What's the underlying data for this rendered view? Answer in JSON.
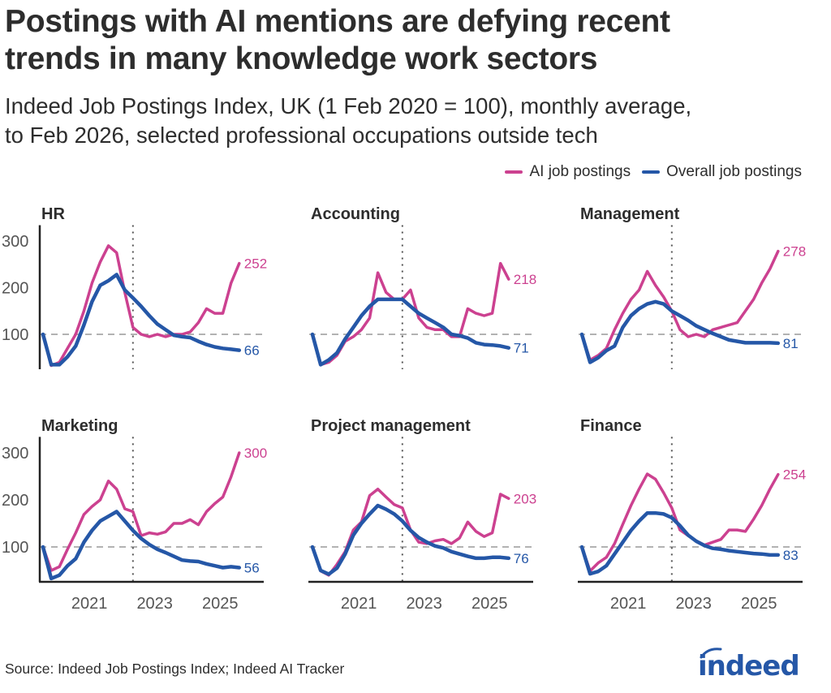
{
  "title_lines": [
    "Postings with AI mentions are defying recent",
    "trends in many knowledge work sectors"
  ],
  "subtitle_lines": [
    "Indeed Job Postings Index, UK (1 Feb 2020 = 100), monthly average,",
    "to Feb 2026, selected professional occupations outside tech"
  ],
  "legend": [
    {
      "label": "AI job postings",
      "color": "#CC4190"
    },
    {
      "label": "Overall job postings",
      "color": "#2557A7"
    }
  ],
  "source": "Source: Indeed Job Postings Index; Indeed AI Tracker",
  "logo_text": "indeed",
  "chart_data": {
    "type": "line",
    "layout": "small-multiples 2x3",
    "x": [
      "2020-02",
      "2020-05",
      "2020-08",
      "2020-11",
      "2021-02",
      "2021-05",
      "2021-08",
      "2021-11",
      "2022-02",
      "2022-05",
      "2022-08",
      "2022-11",
      "2023-02",
      "2023-05",
      "2023-08",
      "2023-11",
      "2024-02",
      "2024-05",
      "2024-08",
      "2024-11",
      "2025-02",
      "2025-05",
      "2025-08",
      "2025-11",
      "2026-02"
    ],
    "x_ticks": [
      "2021",
      "2023",
      "2025"
    ],
    "y_ticks": [
      100,
      200,
      300
    ],
    "ylim": [
      25,
      320
    ],
    "baseline": 100,
    "reference_line_date": "2022-11",
    "grid": false,
    "legend_position": "top-right",
    "panels": [
      {
        "title": "HR",
        "series": [
          {
            "name": "AI job postings",
            "end_label": "252",
            "values": [
              100,
              33,
              40,
              70,
              100,
              150,
              210,
              255,
              290,
              275,
              190,
              115,
              100,
              95,
              100,
              95,
              100,
              100,
              105,
              125,
              155,
              145,
              145,
              210,
              252
            ]
          },
          {
            "name": "Overall job postings",
            "end_label": "66",
            "values": [
              100,
              35,
              35,
              52,
              75,
              120,
              170,
              205,
              215,
              228,
              195,
              178,
              160,
              140,
              122,
              110,
              98,
              95,
              93,
              85,
              78,
              73,
              70,
              68,
              66
            ]
          }
        ]
      },
      {
        "title": "Accounting",
        "series": [
          {
            "name": "AI job postings",
            "end_label": "218",
            "values": [
              100,
              35,
              40,
              55,
              85,
              95,
              110,
              135,
              232,
              190,
              175,
              175,
              195,
              135,
              115,
              110,
              110,
              95,
              95,
              155,
              145,
              140,
              145,
              252,
              218
            ]
          },
          {
            "name": "Overall job postings",
            "end_label": "71",
            "values": [
              100,
              35,
              45,
              60,
              90,
              115,
              140,
              160,
              175,
              175,
              175,
              175,
              160,
              145,
              135,
              125,
              115,
              100,
              97,
              92,
              82,
              78,
              77,
              75,
              71
            ]
          }
        ]
      },
      {
        "title": "Management",
        "series": [
          {
            "name": "AI job postings",
            "end_label": "278",
            "values": [
              100,
              45,
              55,
              70,
              110,
              145,
              175,
              195,
              235,
              205,
              180,
              150,
              110,
              95,
              100,
              95,
              110,
              115,
              120,
              125,
              150,
              175,
              210,
              240,
              278
            ]
          },
          {
            "name": "Overall job postings",
            "end_label": "81",
            "values": [
              100,
              40,
              50,
              65,
              75,
              115,
              140,
              155,
              165,
              170,
              165,
              150,
              140,
              130,
              118,
              110,
              102,
              95,
              88,
              85,
              82,
              82,
              82,
              82,
              81
            ]
          }
        ]
      },
      {
        "title": "Marketing",
        "series": [
          {
            "name": "AI job postings",
            "end_label": "300",
            "values": [
              100,
              50,
              58,
              95,
              130,
              169,
              186,
              200,
              240,
              223,
              181,
              175,
              124,
              130,
              127,
              132,
              150,
              150,
              158,
              147,
              175,
              192,
              206,
              249,
              300
            ]
          },
          {
            "name": "Overall job postings",
            "end_label": "56",
            "values": [
              100,
              33,
              40,
              60,
              75,
              110,
              135,
              155,
              165,
              175,
              155,
              135,
              118,
              105,
              95,
              88,
              80,
              72,
              70,
              69,
              64,
              60,
              56,
              58,
              56
            ]
          }
        ]
      },
      {
        "title": "Project management",
        "series": [
          {
            "name": "AI job postings",
            "end_label": "203",
            "values": [
              100,
              49,
              40,
              63,
              90,
              136,
              153,
              209,
              223,
              206,
              190,
              183,
              136,
              110,
              107,
              113,
              116,
              107,
              119,
              153,
              133,
              122,
              130,
              212,
              203
            ]
          },
          {
            "name": "Overall job postings",
            "end_label": "76",
            "values": [
              100,
              50,
              42,
              55,
              85,
              125,
              150,
              170,
              188,
              180,
              170,
              155,
              135,
              120,
              110,
              102,
              98,
              90,
              85,
              80,
              76,
              76,
              78,
              78,
              76
            ]
          }
        ]
      },
      {
        "title": "Finance",
        "series": [
          {
            "name": "AI job postings",
            "end_label": "254",
            "values": [
              100,
              49,
              66,
              78,
              107,
              148,
              188,
              223,
              255,
              244,
              215,
              183,
              136,
              124,
              113,
              104,
              110,
              116,
              136,
              136,
              133,
              159,
              188,
              223,
              254
            ]
          },
          {
            "name": "Overall job postings",
            "end_label": "83",
            "values": [
              100,
              43,
              48,
              60,
              85,
              110,
              135,
              155,
              172,
              172,
              170,
              162,
              145,
              125,
              112,
              103,
              97,
              95,
              92,
              90,
              88,
              86,
              85,
              83,
              83
            ]
          }
        ]
      }
    ]
  }
}
